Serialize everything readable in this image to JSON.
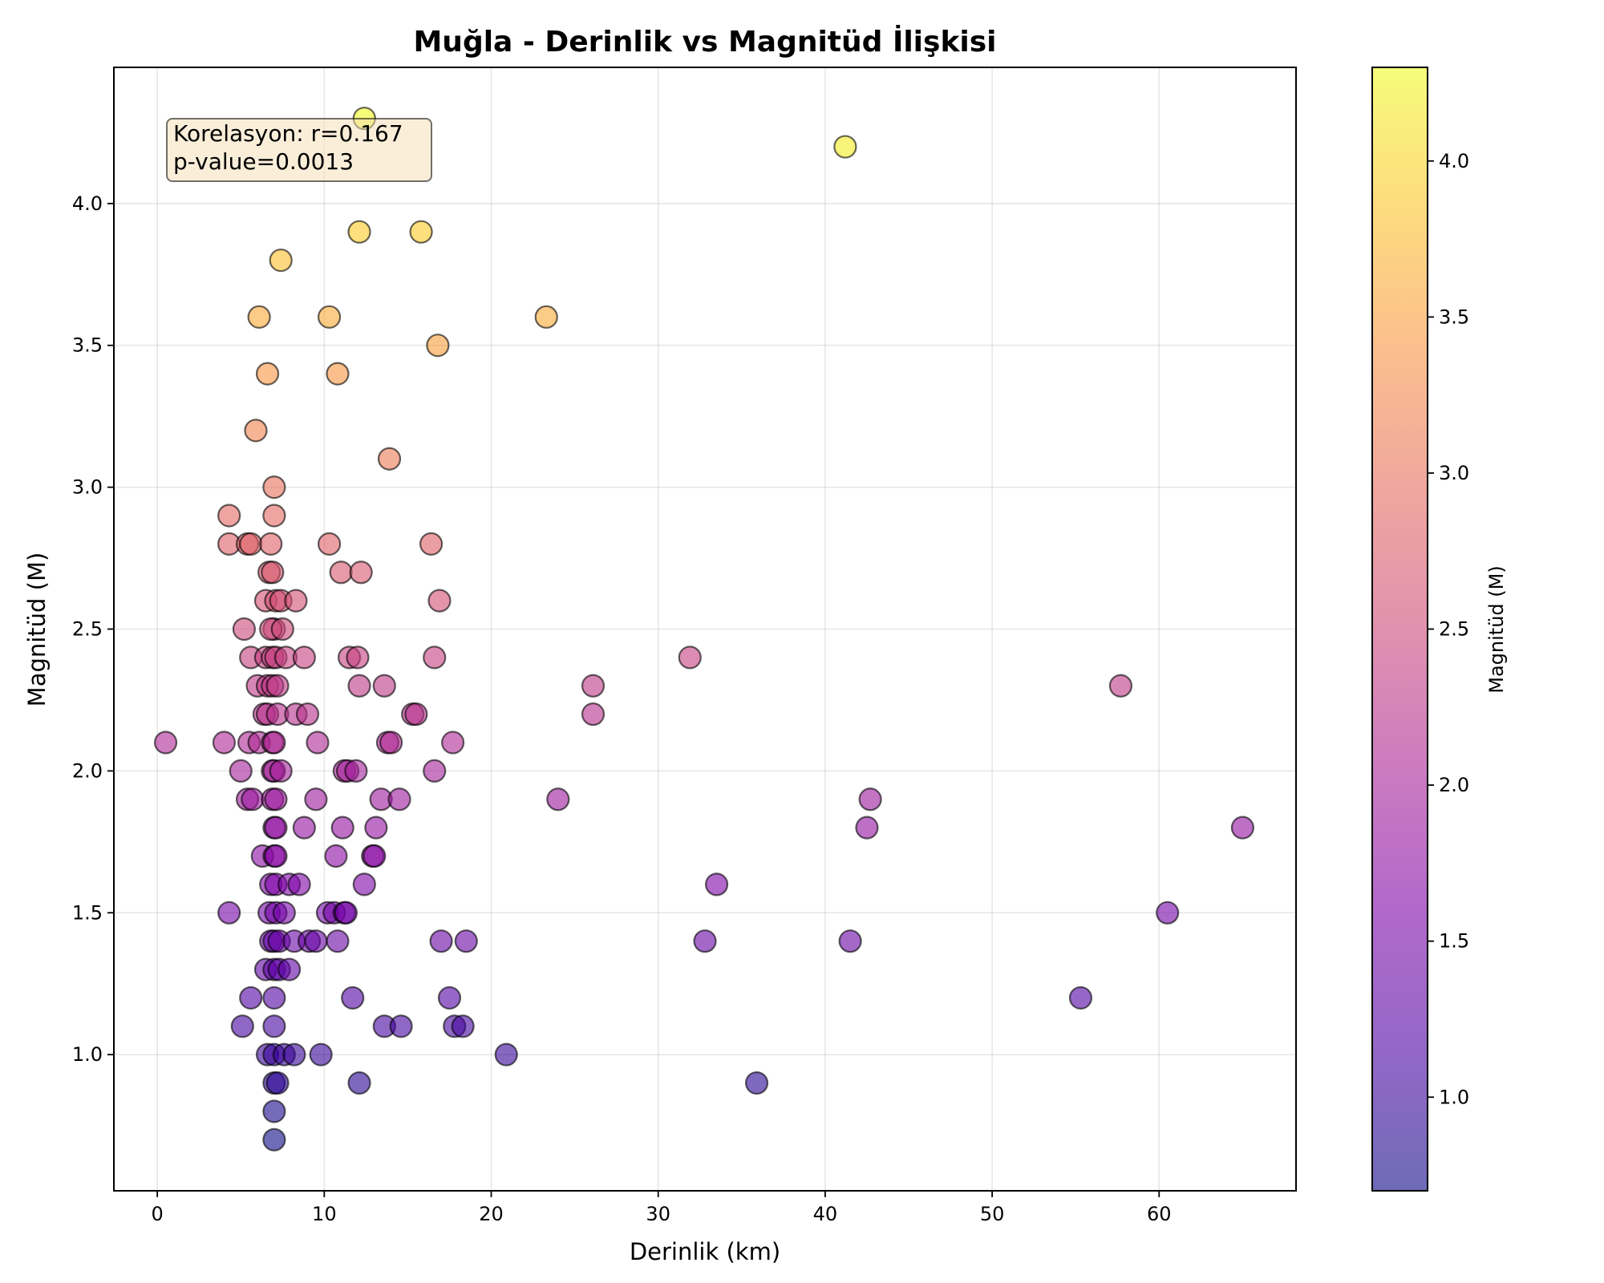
{
  "chart_data": {
    "type": "scatter",
    "title": "Muğla - Derinlik vs Magnitüd İlişkisi",
    "xlabel": "Derinlik (km)",
    "ylabel": "Magnitüd (M)",
    "xlim": [
      -2.6,
      68.2
    ],
    "ylim": [
      0.52,
      4.48
    ],
    "xticks": [
      0,
      10,
      20,
      30,
      40,
      50,
      60
    ],
    "yticks": [
      1.0,
      1.5,
      2.0,
      2.5,
      3.0,
      3.5,
      4.0
    ],
    "xtick_labels": [
      "0",
      "10",
      "20",
      "30",
      "40",
      "50",
      "60"
    ],
    "ytick_labels": [
      "1.0",
      "1.5",
      "2.0",
      "2.5",
      "3.0",
      "3.5",
      "4.0"
    ],
    "grid": true,
    "colorbar": {
      "label": "Magnitüd (M)",
      "colormap": "plasma",
      "range": [
        0.7,
        4.3
      ],
      "ticks": [
        1.0,
        1.5,
        2.0,
        2.5,
        3.0,
        3.5,
        4.0
      ],
      "tick_labels": [
        "1.0",
        "1.5",
        "2.0",
        "2.5",
        "3.0",
        "3.5",
        "4.0"
      ]
    },
    "annotation": {
      "lines": [
        "Korelasyon: r=0.167",
        "p-value=0.0013"
      ]
    },
    "marker_alpha": 0.6,
    "x": [
      12.4,
      41.2,
      12.1,
      15.8,
      7.4,
      6.1,
      10.3,
      23.3,
      16.8,
      6.6,
      10.8,
      5.9,
      13.9,
      7.0,
      4.3,
      7.0,
      4.3,
      5.4,
      5.6,
      6.8,
      10.3,
      16.4,
      6.7,
      6.9,
      11.0,
      12.2,
      16.9,
      6.5,
      7.1,
      7.4,
      8.3,
      5.2,
      7.0,
      6.8,
      7.5,
      5.6,
      6.5,
      6.9,
      7.1,
      7.7,
      8.8,
      11.5,
      12.0,
      16.6,
      31.9,
      6.0,
      6.6,
      6.9,
      7.2,
      12.1,
      13.6,
      26.1,
      6.4,
      6.6,
      7.2,
      8.3,
      9.0,
      15.3,
      15.5,
      26.1,
      57.7,
      0.5,
      4.0,
      5.5,
      6.1,
      6.9,
      7.0,
      9.6,
      13.8,
      14.0,
      17.7,
      5.0,
      6.9,
      7.0,
      7.4,
      11.2,
      11.4,
      11.9,
      16.6,
      5.4,
      5.7,
      6.9,
      7.1,
      9.5,
      13.4,
      14.5,
      24.0,
      42.7,
      7.0,
      7.1,
      8.8,
      11.1,
      13.1,
      42.5,
      65.0,
      6.3,
      7.0,
      7.1,
      10.7,
      12.9,
      13.0,
      6.8,
      7.1,
      7.9,
      8.5,
      12.4,
      33.5,
      4.3,
      6.7,
      7.1,
      7.6,
      10.2,
      10.6,
      11.2,
      11.3,
      60.5,
      6.8,
      7.0,
      7.3,
      8.2,
      9.1,
      9.5,
      10.8,
      17.0,
      18.5,
      32.8,
      41.5,
      6.5,
      7.0,
      7.3,
      7.9,
      5.6,
      7.0,
      11.7,
      17.5,
      55.3,
      5.1,
      7.0,
      13.6,
      14.6,
      17.8,
      18.3,
      6.6,
      7.0,
      7.6,
      8.2,
      9.8,
      20.9,
      7.0,
      7.2,
      12.1,
      35.9,
      7.0,
      7.0
    ],
    "y": [
      4.3,
      4.2,
      3.9,
      3.9,
      3.8,
      3.6,
      3.6,
      3.6,
      3.5,
      3.4,
      3.4,
      3.2,
      3.1,
      3.0,
      2.9,
      2.9,
      2.8,
      2.8,
      2.8,
      2.8,
      2.8,
      2.8,
      2.7,
      2.7,
      2.7,
      2.7,
      2.6,
      2.6,
      2.6,
      2.6,
      2.6,
      2.5,
      2.5,
      2.5,
      2.5,
      2.4,
      2.4,
      2.4,
      2.4,
      2.4,
      2.4,
      2.4,
      2.4,
      2.4,
      2.4,
      2.3,
      2.3,
      2.3,
      2.3,
      2.3,
      2.3,
      2.3,
      2.2,
      2.2,
      2.2,
      2.2,
      2.2,
      2.2,
      2.2,
      2.2,
      2.3,
      2.1,
      2.1,
      2.1,
      2.1,
      2.1,
      2.1,
      2.1,
      2.1,
      2.1,
      2.1,
      2.0,
      2.0,
      2.0,
      2.0,
      2.0,
      2.0,
      2.0,
      2.0,
      1.9,
      1.9,
      1.9,
      1.9,
      1.9,
      1.9,
      1.9,
      1.9,
      1.9,
      1.8,
      1.8,
      1.8,
      1.8,
      1.8,
      1.8,
      1.8,
      1.7,
      1.7,
      1.7,
      1.7,
      1.7,
      1.7,
      1.6,
      1.6,
      1.6,
      1.6,
      1.6,
      1.6,
      1.5,
      1.5,
      1.5,
      1.5,
      1.5,
      1.5,
      1.5,
      1.5,
      1.5,
      1.4,
      1.4,
      1.4,
      1.4,
      1.4,
      1.4,
      1.4,
      1.4,
      1.4,
      1.4,
      1.4,
      1.3,
      1.3,
      1.3,
      1.3,
      1.2,
      1.2,
      1.2,
      1.2,
      1.2,
      1.1,
      1.1,
      1.1,
      1.1,
      1.1,
      1.1,
      1.0,
      1.0,
      1.0,
      1.0,
      1.0,
      1.0,
      0.9,
      0.9,
      0.9,
      0.9,
      0.8,
      0.7
    ]
  }
}
